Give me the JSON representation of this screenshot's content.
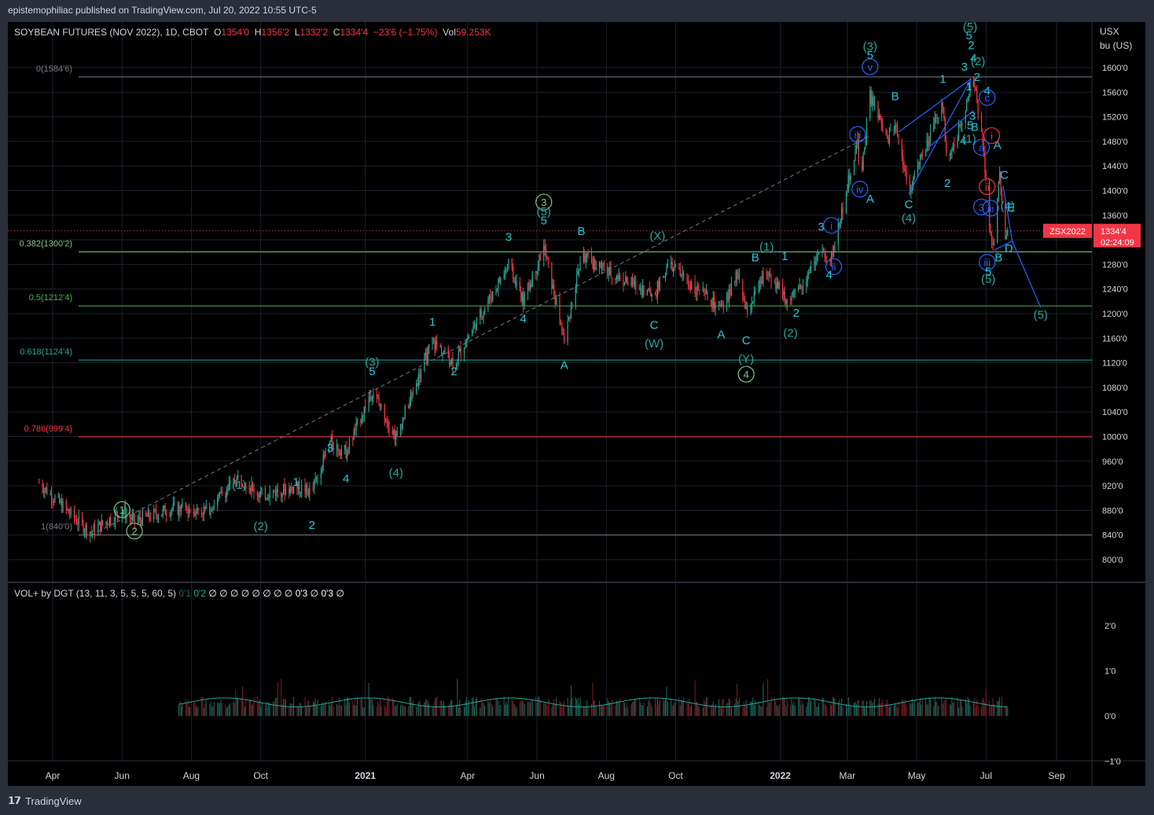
{
  "header": {
    "published": "epistemophiliac published on TradingView.com, Jul 20, 2022 10:55 UTC-5"
  },
  "legend": {
    "symbol": "SOYBEAN FUTURES (NOV 2022), 1D, CBOT",
    "o_label": "O",
    "o": "1354'0",
    "h_label": "H",
    "h": "1356'2",
    "l_label": "L",
    "l": "1332'2",
    "c_label": "C",
    "c": "1334'4",
    "change": "−23'6 (−1.75%)",
    "vol_label": "Vol",
    "vol": "59.253K"
  },
  "price_axis": {
    "unit_line1": "USX",
    "unit_line2": "bu (US)",
    "ticks": [
      "1600'0",
      "1560'0",
      "1520'0",
      "1480'0",
      "1440'0",
      "1400'0",
      "1360'0",
      "1320'0",
      "1280'0",
      "1240'0",
      "1200'0",
      "1160'0",
      "1120'0",
      "1080'0",
      "1040'0",
      "1000'0",
      "960'0",
      "920'0",
      "880'0",
      "840'0",
      "800'0"
    ],
    "last_price_label": "ZSX2022",
    "last_price": "1334'4",
    "countdown": "02:24:09"
  },
  "fib_levels": [
    {
      "label": "0(1584'6)",
      "price": 1584.75,
      "color": "#787b86"
    },
    {
      "label": "0.382(1300'2)",
      "price": 1300.25,
      "color": "#81c784"
    },
    {
      "label": "0.5(1212'4)",
      "price": 1212.5,
      "color": "#4caf50"
    },
    {
      "label": "0.618(1124'4)",
      "price": 1124.5,
      "color": "#26a69a"
    },
    {
      "label": "0.786(999'4)",
      "price": 999.5,
      "color": "#f23645"
    },
    {
      "label": "1(840'0)",
      "price": 840,
      "color": "#787b86"
    }
  ],
  "volume_panel": {
    "legend": "VOL+ by DGT (13, 11, 3, 5, 5, 5, 60, 5)",
    "legend_values": [
      {
        "t": "0'1",
        "c": "dim"
      },
      {
        "t": "0'2",
        "c": "grn"
      },
      {
        "t": "∅",
        "c": "wht"
      },
      {
        "t": "∅",
        "c": "wht"
      },
      {
        "t": "∅",
        "c": "wht"
      },
      {
        "t": "∅",
        "c": "wht"
      },
      {
        "t": "∅",
        "c": "wht"
      },
      {
        "t": "∅",
        "c": "wht"
      },
      {
        "t": "∅",
        "c": "wht"
      },
      {
        "t": "∅",
        "c": "wht"
      },
      {
        "t": "0'3",
        "c": "wht"
      },
      {
        "t": "∅",
        "c": "wht"
      },
      {
        "t": "0'3",
        "c": "wht"
      },
      {
        "t": "∅",
        "c": "wht"
      }
    ],
    "ticks": [
      "2'0",
      "1'0",
      "0'0",
      "−1'0"
    ]
  },
  "time_axis": {
    "labels": [
      "Apr",
      "Jun",
      "Aug",
      "Oct",
      "2021",
      "Apr",
      "Jun",
      "Aug",
      "Oct",
      "2022",
      "Mar",
      "May",
      "Jul",
      "Sep"
    ]
  },
  "wave_labels": [
    {
      "t": "1",
      "d": "2020-06-01",
      "p": 875,
      "c": "#81c784",
      "circ": true
    },
    {
      "t": "2",
      "d": "2020-06-12",
      "p": 840,
      "c": "#81c784",
      "circ": true
    },
    {
      "t": "(1)",
      "d": "2020-09-12",
      "p": 915,
      "c": "#26a69a"
    },
    {
      "t": "(2)",
      "d": "2020-10-01",
      "p": 848,
      "c": "#26a69a"
    },
    {
      "t": "1",
      "d": "2020-11-01",
      "p": 920,
      "c": "#26c6da"
    },
    {
      "t": "2",
      "d": "2020-11-15",
      "p": 850,
      "c": "#26c6da"
    },
    {
      "t": "3",
      "d": "2020-12-01",
      "p": 975,
      "c": "#26c6da"
    },
    {
      "t": "4",
      "d": "2020-12-15",
      "p": 925,
      "c": "#26c6da"
    },
    {
      "t": "(3)",
      "d": "2021-01-07",
      "p": 1115,
      "c": "#26a69a"
    },
    {
      "t": "5",
      "d": "2021-01-07",
      "p": 1100,
      "c": "#26c6da"
    },
    {
      "t": "(4)",
      "d": "2021-01-28",
      "p": 935,
      "c": "#26a69a"
    },
    {
      "t": "1",
      "d": "2021-03-01",
      "p": 1180,
      "c": "#26c6da"
    },
    {
      "t": "2",
      "d": "2021-03-20",
      "p": 1100,
      "c": "#26c6da"
    },
    {
      "t": "3",
      "d": "2021-05-07",
      "p": 1318,
      "c": "#26c6da"
    },
    {
      "t": "4",
      "d": "2021-05-20",
      "p": 1185,
      "c": "#26c6da"
    },
    {
      "t": "3",
      "d": "2021-06-07",
      "p": 1375,
      "c": "#81c784",
      "circ": true
    },
    {
      "t": "(5)",
      "d": "2021-06-07",
      "p": 1360,
      "c": "#26a69a"
    },
    {
      "t": "5",
      "d": "2021-06-07",
      "p": 1345,
      "c": "#26c6da"
    },
    {
      "t": "A",
      "d": "2021-06-25",
      "p": 1110,
      "c": "#26c6da"
    },
    {
      "t": "B",
      "d": "2021-07-10",
      "p": 1328,
      "c": "#26c6da"
    },
    {
      "t": "(X)",
      "d": "2021-09-15",
      "p": 1320,
      "c": "#26a69a"
    },
    {
      "t": "C",
      "d": "2021-09-12",
      "p": 1175,
      "c": "#26c6da"
    },
    {
      "t": "(W)",
      "d": "2021-09-12",
      "p": 1145,
      "c": "#26a69a"
    },
    {
      "t": "A",
      "d": "2021-11-10",
      "p": 1160,
      "c": "#26c6da"
    },
    {
      "t": "B",
      "d": "2021-12-10",
      "p": 1285,
      "c": "#26c6da"
    },
    {
      "t": "(1)",
      "d": "2021-12-20",
      "p": 1302,
      "c": "#26a69a"
    },
    {
      "t": "C",
      "d": "2021-12-02",
      "p": 1150,
      "c": "#26c6da"
    },
    {
      "t": "(Y)",
      "d": "2021-12-02",
      "p": 1120,
      "c": "#26a69a"
    },
    {
      "t": "4",
      "d": "2021-12-02",
      "p": 1095,
      "c": "#81c784",
      "circ": true
    },
    {
      "t": "1",
      "d": "2022-01-05",
      "p": 1287,
      "c": "#26c6da"
    },
    {
      "t": "(2)",
      "d": "2022-01-10",
      "p": 1162,
      "c": "#26a69a"
    },
    {
      "t": "2",
      "d": "2022-01-15",
      "p": 1195,
      "c": "#26c6da"
    },
    {
      "t": "3",
      "d": "2022-02-06",
      "p": 1335,
      "c": "#26c6da"
    },
    {
      "t": "i",
      "d": "2022-02-15",
      "p": 1337,
      "c": "#2962ff",
      "circ": true
    },
    {
      "t": "ii",
      "d": "2022-02-17",
      "p": 1270,
      "c": "#2962ff",
      "circ": true
    },
    {
      "t": "4",
      "d": "2022-02-13",
      "p": 1257,
      "c": "#26c6da"
    },
    {
      "t": "iii",
      "d": "2022-03-10",
      "p": 1485,
      "c": "#2962ff",
      "circ": true
    },
    {
      "t": "iv",
      "d": "2022-03-12",
      "p": 1396,
      "c": "#2962ff",
      "circ": true
    },
    {
      "t": "A",
      "d": "2022-03-21",
      "p": 1380,
      "c": "#26c6da"
    },
    {
      "t": "(3)",
      "d": "2022-03-21",
      "p": 1628,
      "c": "#26a69a"
    },
    {
      "t": "5",
      "d": "2022-03-21",
      "p": 1614,
      "c": "#26c6da"
    },
    {
      "t": "v",
      "d": "2022-03-21",
      "p": 1595,
      "c": "#2962ff",
      "circ": true
    },
    {
      "t": "B",
      "d": "2022-04-12",
      "p": 1547,
      "c": "#26c6da"
    },
    {
      "t": "C",
      "d": "2022-04-24",
      "p": 1371,
      "c": "#26c6da"
    },
    {
      "t": "(4)",
      "d": "2022-04-24",
      "p": 1349,
      "c": "#26a69a"
    },
    {
      "t": "1",
      "d": "2022-05-24",
      "p": 1575,
      "c": "#26c6da"
    },
    {
      "t": "2",
      "d": "2022-05-28",
      "p": 1406,
      "c": "#26c6da"
    },
    {
      "t": "3",
      "d": "2022-06-12",
      "p": 1595,
      "c": "#26c6da"
    },
    {
      "t": "5",
      "d": "2022-06-20",
      "p": 1690,
      "c": "#81c784",
      "circ": true
    },
    {
      "t": "(5)",
      "d": "2022-06-17",
      "p": 1660,
      "c": "#26a69a"
    },
    {
      "t": "5",
      "d": "2022-06-16",
      "p": 1646,
      "c": "#26c6da"
    },
    {
      "t": "2",
      "d": "2022-06-18",
      "p": 1630,
      "c": "#26c6da"
    },
    {
      "t": "(2)",
      "d": "2022-06-24",
      "p": 1604,
      "c": "#26a69a"
    },
    {
      "t": "4",
      "d": "2022-06-20",
      "p": 1609,
      "c": "#26c6da"
    },
    {
      "t": "1",
      "d": "2022-06-16",
      "p": 1563,
      "c": "#26c6da"
    },
    {
      "t": "2",
      "d": "2022-06-23",
      "p": 1578,
      "c": "#26c6da"
    },
    {
      "t": "3",
      "d": "2022-06-19",
      "p": 1515,
      "c": "#26c6da"
    },
    {
      "t": "5",
      "d": "2022-06-17",
      "p": 1500,
      "c": "#26c6da"
    },
    {
      "t": "B",
      "d": "2022-06-21",
      "p": 1497,
      "c": "#26c6da"
    },
    {
      "t": "4",
      "d": "2022-06-11",
      "p": 1475,
      "c": "#26c6da"
    },
    {
      "t": "(1)",
      "d": "2022-06-16",
      "p": 1478,
      "c": "#26a69a"
    },
    {
      "t": "4",
      "d": "2022-07-02",
      "p": 1556,
      "c": "#26c6da"
    },
    {
      "t": "c",
      "d": "2022-07-02",
      "p": 1545,
      "c": "#2962ff",
      "circ": true
    },
    {
      "t": "A",
      "d": "2022-07-11",
      "p": 1468,
      "c": "#26c6da"
    },
    {
      "t": "i",
      "d": "2022-07-06",
      "p": 1483,
      "c": "#f23645",
      "circ": true
    },
    {
      "t": "a",
      "d": "2022-06-27",
      "p": 1464,
      "c": "#2962ff",
      "circ": true
    },
    {
      "t": "ii",
      "d": "2022-07-02",
      "p": 1400,
      "c": "#f23645",
      "circ": true
    },
    {
      "t": "C",
      "d": "2022-07-17",
      "p": 1419,
      "c": "#26c6da"
    },
    {
      "t": "3",
      "d": "2022-06-27",
      "p": 1367,
      "c": "#2962ff",
      "circ": true
    },
    {
      "t": "iii",
      "d": "2022-07-05",
      "p": 1365,
      "c": "#2962ff",
      "circ": true
    },
    {
      "t": "(4)",
      "d": "2022-07-20",
      "p": 1369,
      "c": "#26a69a"
    },
    {
      "t": "E",
      "d": "2022-07-23",
      "p": 1366,
      "c": "#26c6da"
    },
    {
      "t": "D",
      "d": "2022-07-21",
      "p": 1300,
      "c": "#26c6da"
    },
    {
      "t": "B",
      "d": "2022-07-12",
      "p": 1285,
      "c": "#26c6da"
    },
    {
      "t": "iii",
      "d": "2022-07-02",
      "p": 1277,
      "c": "#2962ff",
      "circ": true
    },
    {
      "t": "5",
      "d": "2022-07-03",
      "p": 1262,
      "c": "#26c6da"
    },
    {
      "t": "(5)",
      "d": "2022-07-03",
      "p": 1250,
      "c": "#26a69a"
    },
    {
      "t": "(5)",
      "d": "2022-08-18",
      "p": 1192,
      "c": "#26a69a"
    }
  ],
  "colors": {
    "up": "#22ab94",
    "down": "#f23645",
    "grid": "#1e222d",
    "accent": "#2962ff"
  }
}
